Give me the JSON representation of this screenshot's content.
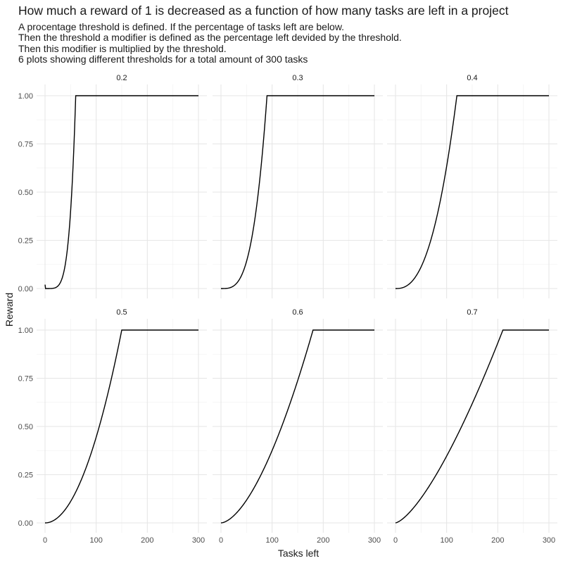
{
  "chart_data": {
    "type": "line",
    "title": "How much a reward of 1 is decreased as a function of how many tasks are left in a project",
    "subtitle": [
      "A procentage threshold is defined. If the percentage of tasks left are below.",
      "Then the threshold a modifier is defined as the percentage left devided by the threshold.",
      "Then this modifier is multiplied by the threshold.",
      "6 plots showing different thresholds for a total amount of 300 tasks"
    ],
    "xlabel": "Tasks left",
    "ylabel": "Reward",
    "xlim": [
      0,
      300
    ],
    "ylim": [
      0,
      1
    ],
    "x_ticks": [
      0,
      100,
      200,
      300
    ],
    "y_ticks": [
      0.0,
      0.25,
      0.5,
      0.75,
      1.0
    ],
    "x_tick_labels": [
      "0",
      "100",
      "200",
      "300"
    ],
    "y_tick_labels": [
      "0.00",
      "0.25",
      "0.50",
      "0.75",
      "1.00"
    ],
    "grid": true,
    "line_color": "#000000",
    "total_tasks": 300,
    "facets": [
      {
        "label": "0.2",
        "threshold": 0.2
      },
      {
        "label": "0.3",
        "threshold": 0.3
      },
      {
        "label": "0.4",
        "threshold": 0.4
      },
      {
        "label": "0.5",
        "threshold": 0.5
      },
      {
        "label": "0.6",
        "threshold": 0.6
      },
      {
        "label": "0.7",
        "threshold": 0.7
      }
    ]
  }
}
